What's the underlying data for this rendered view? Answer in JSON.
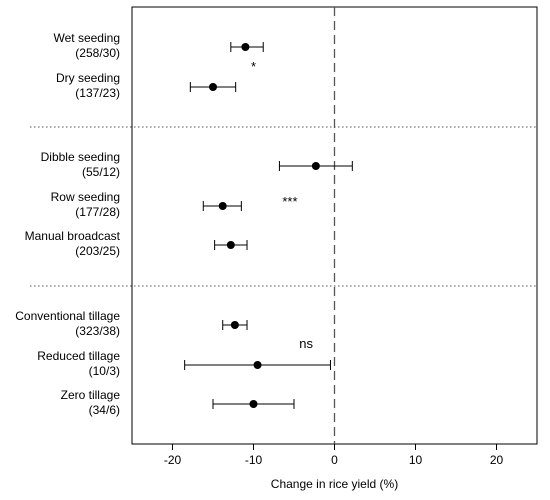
{
  "chart_data": {
    "type": "forest",
    "xlabel": "Change in rice yield (%)",
    "xlim": [
      -25,
      25
    ],
    "xticks": [
      -20,
      -10,
      0,
      10,
      20
    ],
    "reference_line_x": 0,
    "grid": false,
    "groups": [
      {
        "significance": "*",
        "significance_x": -10,
        "items": [
          {
            "label": "Wet seeding",
            "n": "(258/30)",
            "mean": -11,
            "lower": -12.8,
            "upper": -8.8
          },
          {
            "label": "Dry seeding",
            "n": "(137/23)",
            "mean": -15,
            "lower": -17.8,
            "upper": -12.2
          }
        ]
      },
      {
        "significance": "***",
        "significance_x": -5.5,
        "items": [
          {
            "label": "Dibble seeding",
            "n": "(55/12)",
            "mean": -2.3,
            "lower": -6.8,
            "upper": 2.2
          },
          {
            "label": "Row seeding",
            "n": "(177/28)",
            "mean": -13.8,
            "lower": -16.2,
            "upper": -11.5
          },
          {
            "label": "Manual broadcast",
            "n": "(203/25)",
            "mean": -12.8,
            "lower": -14.8,
            "upper": -10.8
          }
        ]
      },
      {
        "significance": "ns",
        "significance_x": -3.5,
        "items": [
          {
            "label": "Conventional tillage",
            "n": "(323/38)",
            "mean": -12.3,
            "lower": -13.8,
            "upper": -10.8
          },
          {
            "label": "Reduced tillage",
            "n": "(10/3)",
            "mean": -9.5,
            "lower": -18.5,
            "upper": -0.5
          },
          {
            "label": "Zero tillage",
            "n": "(34/6)",
            "mean": -10,
            "lower": -15,
            "upper": -5
          }
        ]
      }
    ]
  }
}
